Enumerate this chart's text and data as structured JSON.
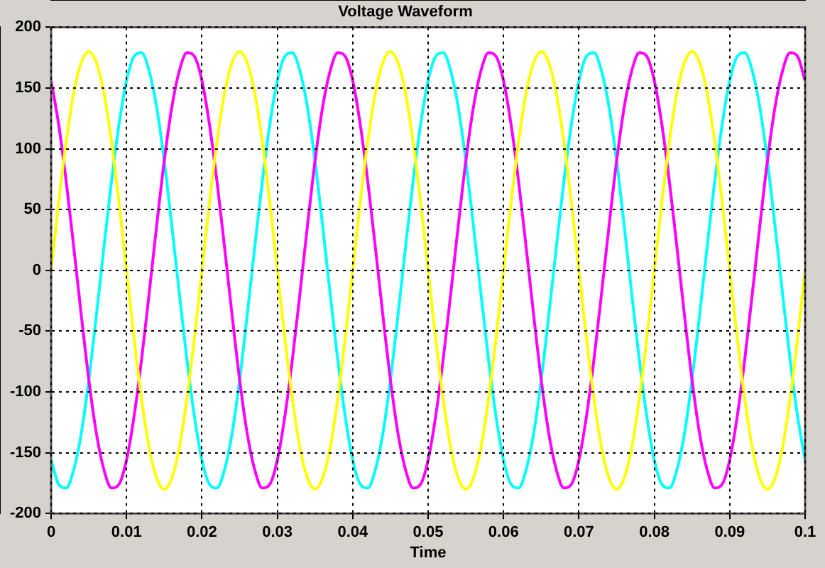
{
  "chart_data": {
    "type": "line",
    "title": "Voltage Waveform",
    "xlabel": "Time",
    "x": [
      0,
      0.001,
      0.002,
      0.003,
      0.004,
      0.005,
      0.006,
      0.007,
      0.008,
      0.009,
      0.01,
      0.011,
      0.012,
      0.013,
      0.014,
      0.015,
      0.016,
      0.017,
      0.018,
      0.019,
      0.02,
      0.021,
      0.022,
      0.023,
      0.024,
      0.025,
      0.026,
      0.027,
      0.028,
      0.029,
      0.03,
      0.031,
      0.032,
      0.033,
      0.034,
      0.035,
      0.036,
      0.037,
      0.038,
      0.039,
      0.04,
      0.041,
      0.042,
      0.043,
      0.044,
      0.045,
      0.046,
      0.047,
      0.048,
      0.049,
      0.05,
      0.051,
      0.052,
      0.053,
      0.054,
      0.055,
      0.056,
      0.057,
      0.058,
      0.059,
      0.06,
      0.061,
      0.062,
      0.063,
      0.064,
      0.065,
      0.066,
      0.067,
      0.068,
      0.069,
      0.07,
      0.071,
      0.072,
      0.073,
      0.074,
      0.075,
      0.076,
      0.077,
      0.078,
      0.079,
      0.08,
      0.081,
      0.082,
      0.083,
      0.084,
      0.085,
      0.086,
      0.087,
      0.088,
      0.089,
      0.09,
      0.091,
      0.092,
      0.093,
      0.094,
      0.095,
      0.096,
      0.097,
      0.098,
      0.099,
      0.1
    ],
    "series": [
      {
        "color": "#ffff00",
        "values": [
          0,
          56,
          106,
          146,
          171,
          180,
          171,
          146,
          106,
          56,
          0,
          -56,
          -106,
          -146,
          -171,
          -180,
          -171,
          -146,
          -106,
          -56,
          0,
          56,
          106,
          146,
          171,
          180,
          171,
          146,
          106,
          56,
          0,
          -56,
          -106,
          -146,
          -171,
          -180,
          -171,
          -146,
          -106,
          -56,
          0,
          56,
          106,
          146,
          171,
          180,
          171,
          146,
          106,
          56,
          0,
          -56,
          -106,
          -146,
          -171,
          -180,
          -171,
          -146,
          -106,
          -56,
          0,
          56,
          106,
          146,
          171,
          180,
          171,
          146,
          106,
          56,
          0,
          -56,
          -106,
          -146,
          -171,
          -180,
          -171,
          -146,
          -106,
          -56,
          0,
          56,
          106,
          146,
          171,
          180,
          171,
          146,
          106,
          56,
          0,
          -56,
          -106,
          -146,
          -171,
          -180,
          -171,
          -146,
          -106,
          -56,
          0
        ]
      },
      {
        "color": "#ff00ff",
        "values": [
          156,
          120,
          73,
          19,
          -37,
          -90,
          -134,
          -164,
          -179,
          -176,
          -156,
          -120,
          -73,
          -19,
          37,
          90,
          134,
          164,
          179,
          176,
          156,
          120,
          73,
          19,
          -37,
          -90,
          -134,
          -164,
          -179,
          -176,
          -156,
          -120,
          -73,
          -19,
          37,
          90,
          134,
          164,
          179,
          176,
          156,
          120,
          73,
          19,
          -37,
          -90,
          -134,
          -164,
          -179,
          -176,
          -156,
          -120,
          -73,
          -19,
          37,
          90,
          134,
          164,
          179,
          176,
          156,
          120,
          73,
          19,
          -37,
          -90,
          -134,
          -164,
          -179,
          -176,
          -156,
          -120,
          -73,
          -19,
          37,
          90,
          134,
          164,
          179,
          176,
          156,
          120,
          73,
          19,
          -37,
          -90,
          -134,
          -164,
          -179,
          -176,
          -156,
          -120,
          -73,
          -19,
          37,
          90,
          134,
          164,
          179,
          176,
          156
        ]
      },
      {
        "color": "#00ffff",
        "values": [
          -156,
          -176,
          -179,
          -164,
          -134,
          -90,
          -37,
          19,
          73,
          120,
          156,
          176,
          179,
          164,
          134,
          90,
          37,
          -19,
          -73,
          -120,
          -156,
          -176,
          -179,
          -164,
          -134,
          -90,
          -37,
          19,
          73,
          120,
          156,
          176,
          179,
          164,
          134,
          90,
          37,
          -19,
          -73,
          -120,
          -156,
          -176,
          -179,
          -164,
          -134,
          -90,
          -37,
          19,
          73,
          120,
          156,
          176,
          179,
          164,
          134,
          90,
          37,
          -19,
          -73,
          -120,
          -156,
          -176,
          -179,
          -164,
          -134,
          -90,
          -37,
          19,
          73,
          120,
          156,
          176,
          179,
          164,
          134,
          90,
          37,
          -19,
          -73,
          -120,
          -156,
          -176,
          -179,
          -164,
          -134,
          -90,
          -37,
          19,
          73,
          120,
          156,
          176,
          179,
          164,
          134,
          90,
          37,
          -19,
          -73,
          -120,
          -156
        ]
      }
    ],
    "xlim": [
      0,
      0.1
    ],
    "xticks": [
      0,
      0.01,
      0.02,
      0.03,
      0.04,
      0.05,
      0.06,
      0.07,
      0.08,
      0.09,
      0.1
    ],
    "ylim": [
      -200,
      200
    ],
    "yticks": [
      -200,
      -150,
      -100,
      -50,
      0,
      50,
      100,
      150,
      200
    ],
    "grid": true,
    "marker": "none",
    "line_style": "solid",
    "legend": false
  }
}
